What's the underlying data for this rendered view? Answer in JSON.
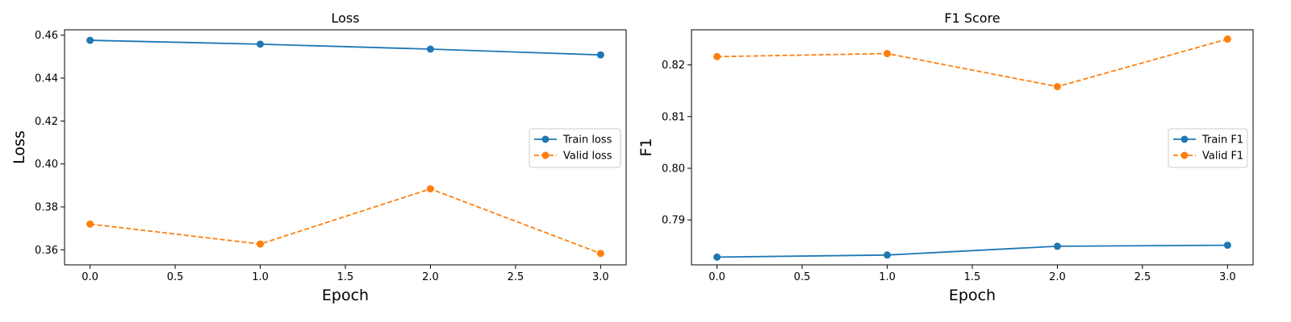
{
  "chart_data": [
    {
      "type": "line",
      "title": "Loss",
      "xlabel": "Epoch",
      "ylabel": "Loss",
      "x": [
        0,
        1,
        2,
        3
      ],
      "xlim": [
        -0.15,
        3.15
      ],
      "ylim": [
        0.353,
        0.4625
      ],
      "xticks": [
        "0.0",
        "0.5",
        "1.0",
        "1.5",
        "2.0",
        "2.5",
        "3.0"
      ],
      "yticks": [
        "0.36",
        "0.38",
        "0.40",
        "0.42",
        "0.44",
        "0.46"
      ],
      "grid": false,
      "legend_position": "center-right",
      "series": [
        {
          "name": "Train loss",
          "values": [
            0.4576,
            0.4558,
            0.4535,
            0.4508
          ],
          "color": "#1f77b4",
          "linestyle": "solid",
          "marker": "circle"
        },
        {
          "name": "Valid loss",
          "values": [
            0.372,
            0.3627,
            0.3884,
            0.3583
          ],
          "color": "#ff7f0e",
          "linestyle": "dashed",
          "marker": "circle"
        }
      ]
    },
    {
      "type": "line",
      "title": "F1 Score",
      "xlabel": "Epoch",
      "ylabel": "F1",
      "x": [
        0,
        1,
        2,
        3
      ],
      "xlim": [
        -0.15,
        3.15
      ],
      "ylim": [
        0.7813,
        0.8268
      ],
      "xticks": [
        "0.0",
        "0.5",
        "1.0",
        "1.5",
        "2.0",
        "2.5",
        "3.0"
      ],
      "yticks": [
        "0.79",
        "0.80",
        "0.81",
        "0.82"
      ],
      "grid": false,
      "legend_position": "center-right",
      "series": [
        {
          "name": "Train F1",
          "values": [
            0.7828,
            0.7832,
            0.7849,
            0.7851
          ],
          "color": "#1f77b4",
          "linestyle": "solid",
          "marker": "circle"
        },
        {
          "name": "Valid F1",
          "values": [
            0.8216,
            0.8222,
            0.8158,
            0.825
          ],
          "color": "#ff7f0e",
          "linestyle": "dashed",
          "marker": "circle"
        }
      ]
    }
  ]
}
